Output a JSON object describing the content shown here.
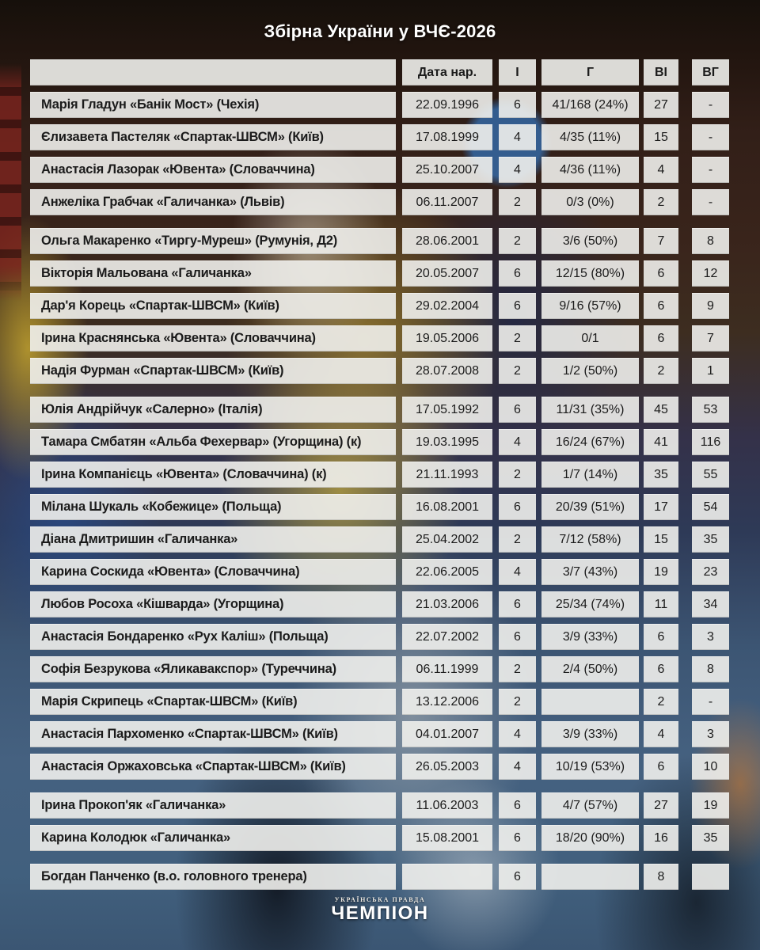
{
  "title": "Збірна України у ВЧЄ-2026",
  "footer": {
    "brand_top": "УКРАЇНСЬКА ПРАВДА",
    "brand_main": "ЧЕМПІОН"
  },
  "colors": {
    "cell_background": "#f0efec",
    "cell_text": "#1b1b1b",
    "title_text": "#ffffff",
    "background_top": "#32201a",
    "background_bottom": "#3b5673"
  },
  "chart_data": {
    "type": "table",
    "title": "Збірна України у ВЧЄ-2026",
    "columns": [
      "",
      "Дата нар.",
      "І",
      "Г",
      "ВІ",
      "ВГ"
    ],
    "groups": [
      [
        {
          "name": "Марія Гладун «Банік Мост» (Чехія)",
          "birth_date": "22.09.1996",
          "games": "6",
          "goals": "41/168 (24%)",
          "vi": "27",
          "vg": "-"
        },
        {
          "name": "Єлизавета Пастеляк «Спартак-ШВСМ» (Київ)",
          "birth_date": "17.08.1999",
          "games": "4",
          "goals": "4/35 (11%)",
          "vi": "15",
          "vg": "-"
        },
        {
          "name": "Анастасія Лазорак «Ювента» (Словаччина)",
          "birth_date": "25.10.2007",
          "games": "4",
          "goals": "4/36 (11%)",
          "vi": "4",
          "vg": "-"
        },
        {
          "name": "Анжеліка Грабчак «Галичанка» (Львів)",
          "birth_date": "06.11.2007",
          "games": "2",
          "goals": "0/3 (0%)",
          "vi": "2",
          "vg": "-"
        }
      ],
      [
        {
          "name": "Ольга Макаренко «Тиргу-Муреш» (Румунія, Д2)",
          "birth_date": "28.06.2001",
          "games": "2",
          "goals": "3/6 (50%)",
          "vi": "7",
          "vg": "8"
        },
        {
          "name": "Вікторія Мальована «Галичанка»",
          "birth_date": "20.05.2007",
          "games": "6",
          "goals": "12/15 (80%)",
          "vi": "6",
          "vg": "12"
        },
        {
          "name": "Дар'я Корець «Спартак-ШВСМ» (Київ)",
          "birth_date": "29.02.2004",
          "games": "6",
          "goals": "9/16 (57%)",
          "vi": "6",
          "vg": "9"
        },
        {
          "name": "Ірина Краснянська «Ювента» (Словаччина)",
          "birth_date": "19.05.2006",
          "games": "2",
          "goals": "0/1",
          "vi": "6",
          "vg": "7"
        },
        {
          "name": "Надія Фурман «Спартак-ШВСМ» (Київ)",
          "birth_date": "28.07.2008",
          "games": "2",
          "goals": "1/2 (50%)",
          "vi": "2",
          "vg": "1"
        }
      ],
      [
        {
          "name": "Юлія Андрійчук «Салерно» (Італія)",
          "birth_date": "17.05.1992",
          "games": "6",
          "goals": "11/31 (35%)",
          "vi": "45",
          "vg": "53"
        },
        {
          "name": "Тамара Смбатян «Альба Фехервар» (Угорщина) (к)",
          "birth_date": "19.03.1995",
          "games": "4",
          "goals": "16/24 (67%)",
          "vi": "41",
          "vg": "116"
        },
        {
          "name": "Ірина Компанієць «Ювента» (Словаччина) (к)",
          "birth_date": "21.11.1993",
          "games": "2",
          "goals": "1/7 (14%)",
          "vi": "35",
          "vg": "55"
        },
        {
          "name": "Мілана Шукаль «Кобежице» (Польща)",
          "birth_date": "16.08.2001",
          "games": "6",
          "goals": "20/39 (51%)",
          "vi": "17",
          "vg": "54"
        },
        {
          "name": "Діана Дмитришин «Галичанка»",
          "birth_date": "25.04.2002",
          "games": "2",
          "goals": "7/12 (58%)",
          "vi": "15",
          "vg": "35"
        },
        {
          "name": "Карина Соскида «Ювента» (Словаччина)",
          "birth_date": "22.06.2005",
          "games": "4",
          "goals": "3/7 (43%)",
          "vi": "19",
          "vg": "23"
        },
        {
          "name": "Любов Росоха «Кішварда» (Угорщина)",
          "birth_date": "21.03.2006",
          "games": "6",
          "goals": "25/34 (74%)",
          "vi": "11",
          "vg": "34"
        },
        {
          "name": "Анастасія Бондаренко «Рух Каліш» (Польща)",
          "birth_date": "22.07.2002",
          "games": "6",
          "goals": "3/9 (33%)",
          "vi": "6",
          "vg": "3"
        },
        {
          "name": "Софія Безрукова «Яликавакспор» (Туреччина)",
          "birth_date": "06.11.1999",
          "games": "2",
          "goals": "2/4 (50%)",
          "vi": "6",
          "vg": "8"
        },
        {
          "name": "Марія Скрипець «Спартак-ШВСМ» (Київ)",
          "birth_date": "13.12.2006",
          "games": "2",
          "goals": "",
          "vi": "2",
          "vg": "-"
        },
        {
          "name": "Анастасія Пархоменко «Спартак-ШВСМ» (Київ)",
          "birth_date": "04.01.2007",
          "games": "4",
          "goals": "3/9 (33%)",
          "vi": "4",
          "vg": "3"
        },
        {
          "name": "Анастасія Оржаховська «Спартак-ШВСМ» (Київ)",
          "birth_date": "26.05.2003",
          "games": "4",
          "goals": "10/19 (53%)",
          "vi": "6",
          "vg": "10"
        }
      ],
      [
        {
          "name": "Ірина Прокоп'як «Галичанка»",
          "birth_date": "11.06.2003",
          "games": "6",
          "goals": "4/7 (57%)",
          "vi": "27",
          "vg": "19"
        },
        {
          "name": "Карина Колодюк «Галичанка»",
          "birth_date": "15.08.2001",
          "games": "6",
          "goals": "18/20 (90%)",
          "vi": "16",
          "vg": "35"
        }
      ],
      [
        {
          "name": "Богдан Панченко (в.о. головного тренера)",
          "birth_date": "",
          "games": "6",
          "goals": "",
          "vi": "8",
          "vg": ""
        }
      ]
    ]
  }
}
